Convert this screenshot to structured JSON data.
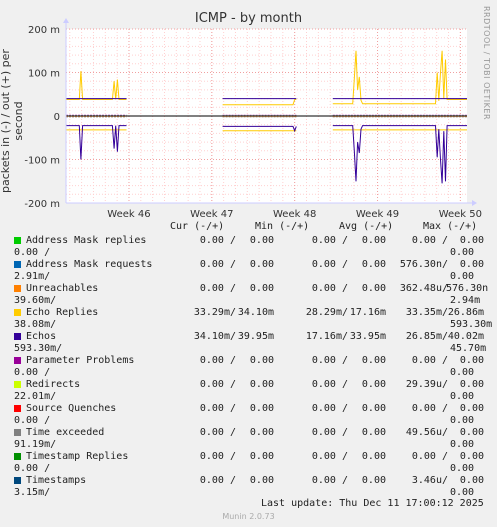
{
  "chart_data": {
    "type": "line",
    "title": "ICMP - by month",
    "ylabel": "packets in (-) / out (+) per second",
    "side_text": "RRDTOOL / TOBI OETIKER",
    "ylim": [
      -200,
      200
    ],
    "y_ticks": [
      {
        "v": 200,
        "label": "200 m"
      },
      {
        "v": 100,
        "label": "100 m"
      },
      {
        "v": 0,
        "label": "0"
      },
      {
        "v": -100,
        "label": "-100 m"
      },
      {
        "v": -200,
        "label": "-200 m"
      }
    ],
    "x_ticks": [
      {
        "v": 1,
        "label": "Week 46"
      },
      {
        "v": 2,
        "label": "Week 47"
      },
      {
        "v": 3,
        "label": "Week 48"
      },
      {
        "v": 4,
        "label": "Week 49"
      },
      {
        "v": 5,
        "label": "Week 50"
      }
    ],
    "xlim": [
      0.24,
      5.08
    ],
    "segments": [
      [
        0.24,
        0.97
      ],
      [
        2.13,
        3.02
      ],
      [
        3.46,
        5.08
      ]
    ],
    "series": [
      {
        "name": "Echo Replies",
        "color": "#ffcc00",
        "out": [
          [
            0.24,
            38
          ],
          [
            0.4,
            38
          ],
          [
            0.42,
            103
          ],
          [
            0.44,
            38
          ],
          [
            0.8,
            38
          ],
          [
            0.82,
            80
          ],
          [
            0.84,
            38
          ],
          [
            0.86,
            84
          ],
          [
            0.88,
            38
          ],
          [
            0.97,
            38
          ],
          [
            2.13,
            26
          ],
          [
            2.98,
            26
          ],
          [
            3.0,
            38
          ],
          [
            3.02,
            38
          ],
          [
            3.46,
            28
          ],
          [
            3.7,
            28
          ],
          [
            3.72,
            85
          ],
          [
            3.74,
            150
          ],
          [
            3.76,
            60
          ],
          [
            3.78,
            90
          ],
          [
            3.8,
            36
          ],
          [
            3.82,
            28
          ],
          [
            4.7,
            28
          ],
          [
            4.72,
            100
          ],
          [
            4.74,
            35
          ],
          [
            4.76,
            100
          ],
          [
            4.78,
            150
          ],
          [
            4.8,
            40
          ],
          [
            4.82,
            130
          ],
          [
            4.84,
            38
          ],
          [
            5.08,
            38
          ]
        ],
        "in": [
          [
            0.24,
            -32
          ],
          [
            0.97,
            -32
          ],
          [
            2.13,
            -34
          ],
          [
            3.02,
            -34
          ],
          [
            3.46,
            -32
          ],
          [
            5.08,
            -32
          ]
        ]
      },
      {
        "name": "Echos",
        "color": "#330099",
        "out": [
          [
            0.24,
            40
          ],
          [
            0.97,
            40
          ],
          [
            2.13,
            40
          ],
          [
            3.02,
            40
          ],
          [
            3.46,
            40
          ],
          [
            5.08,
            40
          ]
        ],
        "in": [
          [
            0.24,
            -22
          ],
          [
            0.4,
            -22
          ],
          [
            0.42,
            -100
          ],
          [
            0.44,
            -22
          ],
          [
            0.8,
            -22
          ],
          [
            0.82,
            -75
          ],
          [
            0.84,
            -22
          ],
          [
            0.86,
            -82
          ],
          [
            0.88,
            -22
          ],
          [
            0.97,
            -22
          ],
          [
            2.13,
            -24
          ],
          [
            2.98,
            -24
          ],
          [
            3.0,
            -34
          ],
          [
            3.02,
            -24
          ],
          [
            3.46,
            -22
          ],
          [
            3.7,
            -22
          ],
          [
            3.72,
            -80
          ],
          [
            3.74,
            -150
          ],
          [
            3.76,
            -60
          ],
          [
            3.78,
            -85
          ],
          [
            3.8,
            -30
          ],
          [
            3.82,
            -22
          ],
          [
            4.7,
            -22
          ],
          [
            4.72,
            -95
          ],
          [
            4.74,
            -30
          ],
          [
            4.76,
            -100
          ],
          [
            4.78,
            -155
          ],
          [
            4.8,
            -35
          ],
          [
            4.82,
            -150
          ],
          [
            4.84,
            -22
          ],
          [
            5.08,
            -22
          ]
        ]
      }
    ]
  },
  "legend": {
    "headers": {
      "cur": "Cur (-/+)",
      "min": "Min (-/+)",
      "avg": "Avg (-/+)",
      "max": "Max (-/+)"
    },
    "rows": [
      {
        "name": "Address Mask replies",
        "color": "#00cc00",
        "cur": "0.00 /",
        "min_v": "0.00",
        "min": "0.00 /",
        "avg_v": "0.00",
        "avg": "0.00 /",
        "max_v": "0.00",
        "max": "0.00 /",
        "wrap_left": "0.00 /",
        "wrap_right": "0.00"
      },
      {
        "name": "Address Mask requests",
        "color": "#0066b3",
        "cur": "0.00 /",
        "min_v": "0.00",
        "min": "0.00 /",
        "avg_v": "0.00",
        "avg": "576.30n/",
        "max_v": "0.00",
        "max": "",
        "wrap_left": "2.91m/",
        "wrap_right": "0.00"
      },
      {
        "name": "Unreachables",
        "color": "#ff8000",
        "cur": "0.00 /",
        "min_v": "0.00",
        "min": "0.00 /",
        "avg_v": "0.00",
        "avg": "362.48u/",
        "max_v": "576.30n",
        "max": "",
        "wrap_left": "39.60m/",
        "wrap_right": "2.94m"
      },
      {
        "name": "Echo Replies",
        "color": "#ffcc00",
        "cur": "33.29m/",
        "min_v": "34.10m",
        "min": "28.29m/",
        "avg_v": "17.16m",
        "avg": "33.35m/",
        "max_v": "26.86m",
        "max": "",
        "wrap_left": "38.08m/",
        "wrap_right": "593.30m"
      },
      {
        "name": "Echos",
        "color": "#330099",
        "cur": "34.10m/",
        "min_v": "39.95m",
        "min": "17.16m/",
        "avg_v": "33.95m",
        "avg": "26.85m/",
        "max_v": "40.02m",
        "max": "",
        "wrap_left": "593.30m/",
        "wrap_right": "45.70m"
      },
      {
        "name": "Parameter Problems",
        "color": "#990099",
        "cur": "0.00 /",
        "min_v": "0.00",
        "min": "0.00 /",
        "avg_v": "0.00",
        "avg": "0.00 /",
        "max_v": "0.00",
        "max": "",
        "wrap_left": "0.00 /",
        "wrap_right": "0.00"
      },
      {
        "name": "Redirects",
        "color": "#ccff00",
        "cur": "0.00 /",
        "min_v": "0.00",
        "min": "0.00 /",
        "avg_v": "0.00",
        "avg": "29.39u/",
        "max_v": "0.00",
        "max": "",
        "wrap_left": "22.01m/",
        "wrap_right": "0.00"
      },
      {
        "name": "Source Quenches",
        "color": "#ff0000",
        "cur": "0.00 /",
        "min_v": "0.00",
        "min": "0.00 /",
        "avg_v": "0.00",
        "avg": "0.00 /",
        "max_v": "0.00",
        "max": "",
        "wrap_left": "0.00 /",
        "wrap_right": "0.00"
      },
      {
        "name": "Time exceeded",
        "color": "#808080",
        "cur": "0.00 /",
        "min_v": "0.00",
        "min": "0.00 /",
        "avg_v": "0.00",
        "avg": "49.56u/",
        "max_v": "0.00",
        "max": "",
        "wrap_left": "91.19m/",
        "wrap_right": "0.00"
      },
      {
        "name": "Timestamp Replies",
        "color": "#008f00",
        "cur": "0.00 /",
        "min_v": "0.00",
        "min": "0.00 /",
        "avg_v": "0.00",
        "avg": "0.00 /",
        "max_v": "0.00",
        "max": "",
        "wrap_left": "0.00 /",
        "wrap_right": "0.00"
      },
      {
        "name": "Timestamps",
        "color": "#00487d",
        "cur": "0.00 /",
        "min_v": "0.00",
        "min": "0.00 /",
        "avg_v": "0.00",
        "avg": "3.46u/",
        "max_v": "0.00",
        "max": "",
        "wrap_left": "3.15m/",
        "wrap_right": "0.00"
      }
    ]
  },
  "footer": {
    "last_update": "Last update: Thu Dec 11 17:00:12 2025",
    "munin": "Munin 2.0.73"
  }
}
